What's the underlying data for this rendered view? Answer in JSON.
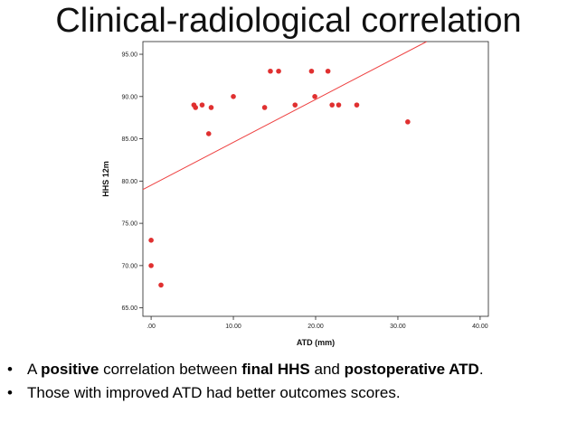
{
  "slide": {
    "title": "Clinical-radiological correlation"
  },
  "chart_data": {
    "type": "scatter",
    "xlabel": "ATD (mm)",
    "ylabel": "HHS 12m",
    "xlim": [
      -1,
      41
    ],
    "ylim": [
      64,
      96.5
    ],
    "x_ticks": [
      0,
      10,
      20,
      30,
      40
    ],
    "x_tick_labels": [
      ".00",
      "10.00",
      "20.00",
      "30.00",
      "40.00"
    ],
    "y_ticks": [
      65,
      70,
      75,
      80,
      85,
      90,
      95
    ],
    "y_tick_labels": [
      "65.00",
      "70.00",
      "75.00",
      "80.00",
      "85.00",
      "90.00",
      "95.00"
    ],
    "point_color": "#e03030",
    "line_color": "#ee4040",
    "points": [
      {
        "x": 0.0,
        "y": 73.0
      },
      {
        "x": 0.0,
        "y": 70.0
      },
      {
        "x": 1.2,
        "y": 67.7
      },
      {
        "x": 5.2,
        "y": 89.0
      },
      {
        "x": 5.4,
        "y": 88.7
      },
      {
        "x": 6.2,
        "y": 89.0
      },
      {
        "x": 7.0,
        "y": 85.6
      },
      {
        "x": 7.3,
        "y": 88.7
      },
      {
        "x": 10.0,
        "y": 90.0
      },
      {
        "x": 13.8,
        "y": 88.7
      },
      {
        "x": 14.5,
        "y": 93.0
      },
      {
        "x": 15.5,
        "y": 93.0
      },
      {
        "x": 17.5,
        "y": 89.0
      },
      {
        "x": 19.5,
        "y": 93.0
      },
      {
        "x": 19.9,
        "y": 90.0
      },
      {
        "x": 21.5,
        "y": 93.0
      },
      {
        "x": 22.0,
        "y": 89.0
      },
      {
        "x": 22.8,
        "y": 89.0
      },
      {
        "x": 25.0,
        "y": 89.0
      },
      {
        "x": 31.2,
        "y": 87.0
      }
    ],
    "fit_line": {
      "x": [
        -1,
        33.5
      ],
      "y": [
        79.0,
        96.5
      ]
    }
  },
  "bullets": [
    {
      "bullet": "•",
      "parts": [
        {
          "text": "A ",
          "bold": false
        },
        {
          "text": "positive",
          "bold": true
        },
        {
          "text": " correlation between ",
          "bold": false
        },
        {
          "text": "final HHS",
          "bold": true
        },
        {
          "text": " and ",
          "bold": false
        },
        {
          "text": "postoperative ATD",
          "bold": true
        },
        {
          "text": ".",
          "bold": false
        }
      ]
    },
    {
      "bullet": "•",
      "parts": [
        {
          "text": "Those with improved ATD had better outcomes scores.",
          "bold": false
        }
      ]
    }
  ]
}
